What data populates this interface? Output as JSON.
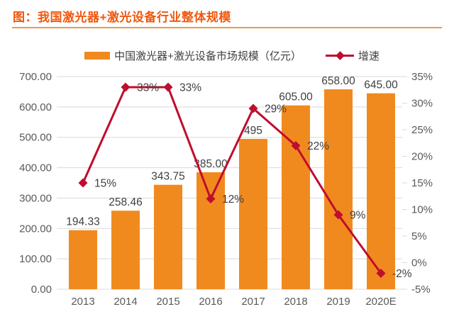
{
  "header": {
    "title": "图：我国激光器+激光设备行业整体规模"
  },
  "legend": {
    "bar_label": "中国激光器+激光设备市场规模（亿元）",
    "line_label": "增速"
  },
  "colors": {
    "title": "#F0580E",
    "underline": "#EA9A4E",
    "bar": "#F18A1E",
    "line": "#BF0D2E",
    "grid": "#D9D9D9",
    "axis_text": "#595959",
    "data_label": "#3F3F3F"
  },
  "chart_data": {
    "type": "bar",
    "subtype": "bar-line-combo",
    "title": "图：我国激光器+激光设备行业整体规模",
    "categories": [
      "2013",
      "2014",
      "2015",
      "2016",
      "2017",
      "2018",
      "2019",
      "2020E"
    ],
    "series": [
      {
        "name": "中国激光器+激光设备市场规模（亿元）",
        "type": "bar",
        "axis": "left",
        "values": [
          194.33,
          258.46,
          343.75,
          385.0,
          495,
          605.0,
          658.0,
          645.0
        ],
        "labels": [
          "194.33",
          "258.46",
          "343.75",
          "385.00",
          "495",
          "605.00",
          "658.00",
          "645.00"
        ]
      },
      {
        "name": "增速",
        "type": "line",
        "axis": "right",
        "values": [
          15,
          33,
          33,
          12,
          29,
          22,
          9,
          -2
        ],
        "labels": [
          "15%",
          "33%",
          "33%",
          "12%",
          "29%",
          "22%",
          "9%",
          "-2%"
        ]
      }
    ],
    "left_axis": {
      "min": 0,
      "max": 700,
      "step": 100,
      "tick_labels": [
        "0.00",
        "100.00",
        "200.00",
        "300.00",
        "400.00",
        "500.00",
        "600.00",
        "700.00"
      ]
    },
    "right_axis": {
      "min": -5,
      "max": 35,
      "step": 5,
      "tick_labels": [
        "-5%",
        "0%",
        "5%",
        "10%",
        "15%",
        "20%",
        "25%",
        "30%",
        "35%"
      ]
    },
    "grid": true,
    "legend_position": "top"
  }
}
